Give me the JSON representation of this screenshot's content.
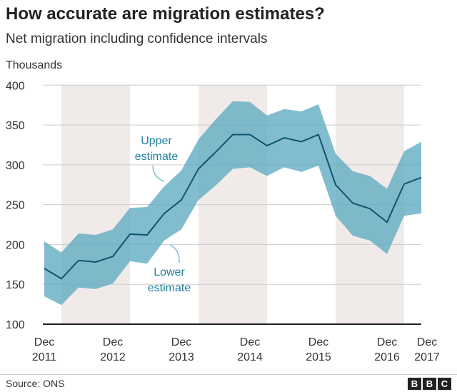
{
  "title": "How accurate are migration estimates?",
  "subtitle": "Net migration including confidence intervals",
  "source": "Source: ONS",
  "logo": "BBC",
  "chart_data": {
    "type": "area",
    "title": "How accurate are migration estimates?",
    "subtitle": "Net migration including confidence intervals",
    "ylabel": "Thousands",
    "ylim": [
      100,
      400
    ],
    "yticks": [
      100,
      150,
      200,
      250,
      300,
      350,
      400
    ],
    "xtick_labels": [
      {
        "index": 0,
        "line1": "Dec",
        "line2": "2011"
      },
      {
        "index": 4,
        "line1": "Dec",
        "line2": "2012"
      },
      {
        "index": 8,
        "line1": "Dec",
        "line2": "2013"
      },
      {
        "index": 12,
        "line1": "Dec",
        "line2": "2014"
      },
      {
        "index": 16,
        "line1": "Dec",
        "line2": "2015"
      },
      {
        "index": 20,
        "line1": "Dec",
        "line2": "2016"
      },
      {
        "index": 22,
        "line1": "Dec",
        "line2": "2017"
      }
    ],
    "grid": true,
    "colors": {
      "band": "#5eaac2",
      "line": "#0d5670",
      "shade": "#f0ebe8"
    },
    "central": [
      170,
      157,
      180,
      178,
      185,
      213,
      212,
      239,
      256,
      295,
      316,
      338,
      338,
      324,
      334,
      329,
      338,
      275,
      252,
      245,
      228,
      276,
      284
    ],
    "upper": [
      204,
      190,
      214,
      212,
      219,
      246,
      247,
      273,
      293,
      332,
      357,
      380,
      379,
      362,
      370,
      367,
      376,
      314,
      292,
      286,
      270,
      317,
      329
    ],
    "lower": [
      135,
      124,
      146,
      144,
      151,
      179,
      176,
      205,
      219,
      256,
      274,
      295,
      297,
      286,
      297,
      291,
      299,
      236,
      211,
      205,
      188,
      236,
      239
    ],
    "annotations": [
      {
        "line1": "Upper",
        "line2": "estimate"
      },
      {
        "line1": "Lower",
        "line2": "estimate"
      }
    ]
  }
}
